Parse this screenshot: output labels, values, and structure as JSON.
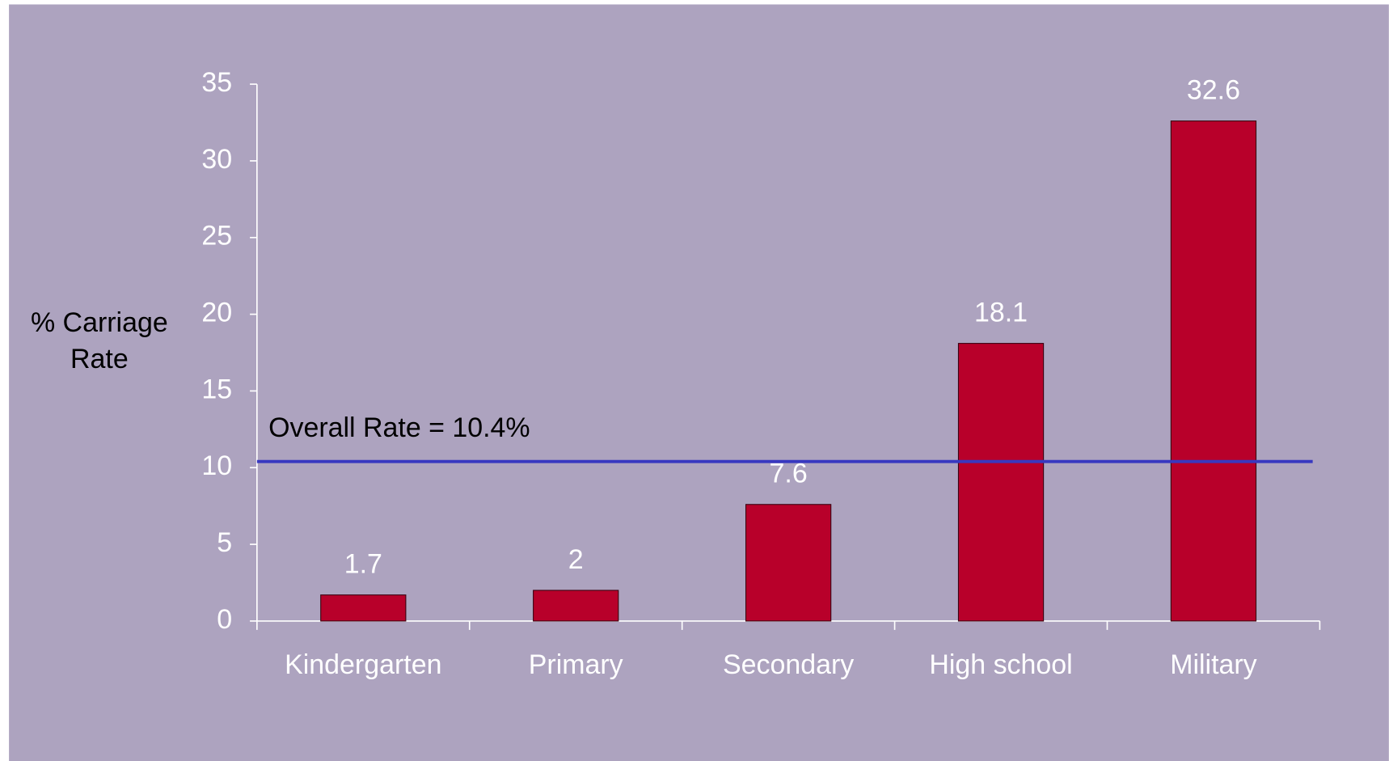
{
  "chart_data": {
    "type": "bar",
    "y_axis_label": [
      "% Carriage",
      "Rate"
    ],
    "categories": [
      "Kindergarten",
      "Primary",
      "Secondary",
      "High school",
      "Military"
    ],
    "values": [
      1.7,
      2,
      7.6,
      18.1,
      32.6
    ],
    "color": "#b8002a",
    "ylim": [
      0,
      35
    ],
    "yticks": [
      0,
      5,
      10,
      15,
      20,
      25,
      30,
      35
    ],
    "reference_line": {
      "value": 10.4,
      "label": "Overall Rate = 10.4%",
      "color": "#3838c0"
    },
    "data_labels": true
  }
}
